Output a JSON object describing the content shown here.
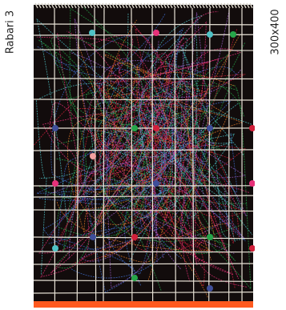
{
  "labels": {
    "name": "Rabari 3",
    "size": "300x400"
  },
  "colors": {
    "background": "#ffffff",
    "rug_body": "#120c0c",
    "grid_lines": "#e8e2d6",
    "fringe": "#ff5a1f",
    "top_border": "#d8d3c8"
  },
  "dots": [
    {
      "color": "#4ec2c6",
      "name": "cyan"
    },
    {
      "color": "#e8317a",
      "name": "pink"
    },
    {
      "color": "#4ec2c6",
      "name": "cyan"
    },
    {
      "color": "#26a64a",
      "name": "green"
    },
    {
      "color": "#3f4f9a",
      "name": "blue"
    },
    {
      "color": "#26a64a",
      "name": "green"
    },
    {
      "color": "#d1203a",
      "name": "red"
    },
    {
      "color": "#3f4f9a",
      "name": "blue"
    },
    {
      "color": "#d1203a",
      "name": "red"
    },
    {
      "color": "#f4a0a0",
      "name": "light-pink"
    },
    {
      "color": "#e8317a",
      "name": "pink"
    },
    {
      "color": "#3f4f9a",
      "name": "blue"
    },
    {
      "color": "#e8317a",
      "name": "pink"
    },
    {
      "color": "#3f4f9a",
      "name": "blue"
    },
    {
      "color": "#d1203a",
      "name": "red"
    },
    {
      "color": "#26a64a",
      "name": "green"
    },
    {
      "color": "#4ec2c6",
      "name": "cyan"
    },
    {
      "color": "#d1203a",
      "name": "red"
    },
    {
      "color": "#26a64a",
      "name": "green"
    },
    {
      "color": "#3f4f9a",
      "name": "blue"
    }
  ],
  "thread_colors": [
    "#d1203a",
    "#26a64a",
    "#4ec2c6",
    "#e8317a",
    "#3f6fd0",
    "#e07a2a",
    "#9a5cc8"
  ]
}
